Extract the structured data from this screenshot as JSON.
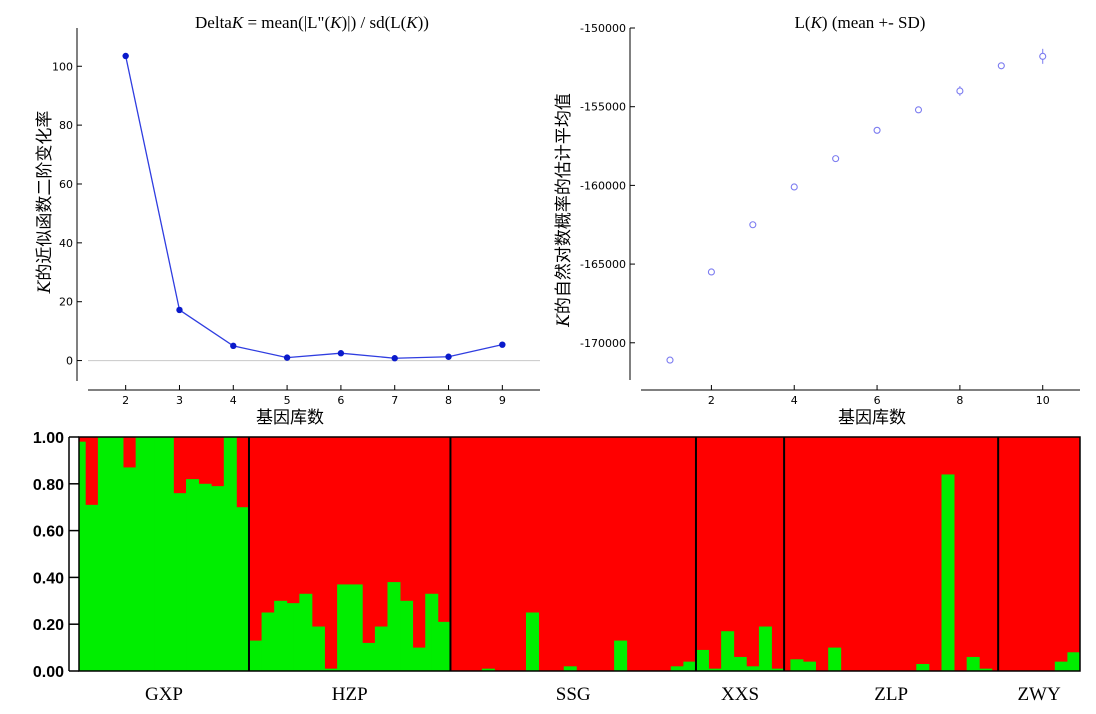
{
  "chart_data": [
    {
      "type": "line",
      "title_prefix": "Delta",
      "title_k": "K",
      "title_mid": " = mean(|L\"(",
      "title_mid2": ")|) / sd(L(",
      "title_end": "))",
      "xlabel": "基因库数",
      "ylabel_k": "K",
      "ylabel_rest": "的近似函数二阶变化率",
      "x": [
        2,
        3,
        4,
        5,
        6,
        7,
        8,
        9
      ],
      "y": [
        103.5,
        17.2,
        5.0,
        1.0,
        2.5,
        0.8,
        1.3,
        5.4
      ],
      "xticks": [
        "2",
        "3",
        "4",
        "5",
        "6",
        "7",
        "8",
        "9"
      ],
      "yticks": [
        "0",
        "20",
        "40",
        "60",
        "80",
        "100"
      ],
      "ylim": [
        -10,
        113
      ],
      "xlim": [
        1.3,
        9.7
      ],
      "color": "#2f3de0",
      "marker_color": "#0a1acb",
      "zero_line": true
    },
    {
      "type": "scatter",
      "title_pre": "L(",
      "title_k": "K",
      "title_post": ") (mean +- SD)",
      "xlabel": "基因库数",
      "ylabel_k": "K",
      "ylabel_rest": "的自然对数概率的估计平均值",
      "x": [
        1,
        2,
        3,
        4,
        5,
        6,
        7,
        8,
        9,
        10
      ],
      "y": [
        -171100,
        -165500,
        -162500,
        -160100,
        -158300,
        -156500,
        -155200,
        -154000,
        -152400,
        -151800
      ],
      "sd": [
        0,
        0,
        0,
        0,
        0,
        0,
        0,
        180,
        0,
        350
      ],
      "xticks": [
        "2",
        "4",
        "6",
        "8",
        "10"
      ],
      "yticks": [
        "-170000",
        "-165000",
        "-160000",
        "-155000",
        "-150000"
      ],
      "ylim": [
        -173000,
        -150000
      ],
      "xlim": [
        0.3,
        10.9
      ],
      "marker": "open-circle",
      "color": "#7b7bf0"
    },
    {
      "type": "bar",
      "stacked": true,
      "colors": {
        "bottom": "#00ee00",
        "top": "#ff0000",
        "divider": "#000000"
      },
      "yticks": [
        "0.00",
        "0.20",
        "0.40",
        "0.60",
        "0.80",
        "1.00"
      ],
      "ylim": [
        0,
        1
      ],
      "groups": [
        {
          "name": "GXP",
          "values": [
            0.98,
            0.71,
            0.71,
            1.0,
            1.0,
            1.0,
            1.0,
            0.87,
            0.87,
            1.0,
            1.0,
            1.0,
            1.0,
            1.0,
            1.0,
            0.76,
            0.76,
            0.82,
            0.82,
            0.8,
            0.8,
            0.79,
            0.79,
            1.0,
            1.0,
            0.7,
            0.7
          ]
        },
        {
          "name": "HZP",
          "values": [
            0.13,
            0.13,
            0.25,
            0.25,
            0.3,
            0.3,
            0.29,
            0.29,
            0.33,
            0.33,
            0.19,
            0.19,
            0.01,
            0.01,
            0.37,
            0.37,
            0.37,
            0.37,
            0.12,
            0.12,
            0.19,
            0.19,
            0.38,
            0.38,
            0.3,
            0.3,
            0.1,
            0.1,
            0.33,
            0.33,
            0.21,
            0.21
          ]
        },
        {
          "name": "SSG",
          "values": [
            0,
            0,
            0,
            0,
            0,
            0.01,
            0.01,
            0,
            0,
            0,
            0,
            0,
            0.25,
            0.25,
            0,
            0,
            0,
            0,
            0.02,
            0.02,
            0,
            0,
            0,
            0,
            0,
            0,
            0.13,
            0.13,
            0,
            0,
            0,
            0,
            0,
            0,
            0,
            0.02,
            0.02,
            0.04,
            0.04
          ]
        },
        {
          "name": "XXS",
          "values": [
            0.09,
            0.09,
            0.01,
            0.01,
            0.17,
            0.17,
            0.06,
            0.06,
            0.02,
            0.02,
            0.19,
            0.19,
            0.01,
            0.01
          ]
        },
        {
          "name": "ZLP",
          "values": [
            0,
            0.05,
            0.05,
            0.04,
            0.04,
            0,
            0,
            0.1,
            0.1,
            0,
            0,
            0,
            0,
            0,
            0,
            0,
            0,
            0,
            0,
            0,
            0,
            0.03,
            0.03,
            0,
            0,
            0.84,
            0.84,
            0,
            0,
            0.06,
            0.06,
            0.01,
            0.01,
            0
          ]
        },
        {
          "name": "ZWY",
          "values": [
            0,
            0,
            0,
            0,
            0,
            0,
            0,
            0,
            0,
            0.04,
            0.04,
            0.08,
            0.08
          ]
        }
      ]
    }
  ]
}
